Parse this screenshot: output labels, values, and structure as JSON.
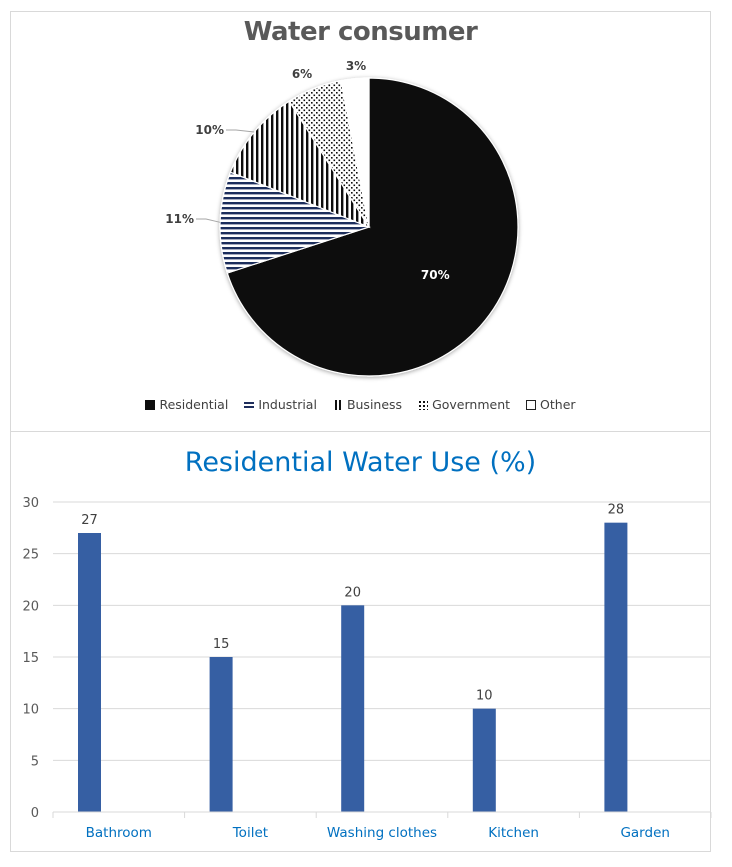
{
  "pie_chart": {
    "title": "Water consumer",
    "slices": [
      {
        "label": "Residential",
        "value": 70,
        "display": "70%",
        "pattern": "solid-black"
      },
      {
        "label": "Industrial",
        "value": 11,
        "display": "11%",
        "pattern": "horizontal-navy-stripes"
      },
      {
        "label": "Business",
        "value": 10,
        "display": "10%",
        "pattern": "vertical-black-stripes"
      },
      {
        "label": "Government",
        "value": 6,
        "display": "6%",
        "pattern": "dots"
      },
      {
        "label": "Other",
        "value": 3,
        "display": "3%",
        "pattern": "white"
      }
    ],
    "legend": [
      "Residential",
      "Industrial",
      "Business",
      "Government",
      "Other"
    ]
  },
  "bar_chart": {
    "title": "Residential Water Use (%)",
    "y_ticks": [
      "0",
      "5",
      "10",
      "15",
      "20",
      "25",
      "30"
    ],
    "categories": [
      "Bathroom",
      "Toilet",
      "Washing clothes",
      "Kitchen",
      "Garden"
    ],
    "values": [
      27,
      15,
      20,
      10,
      28
    ],
    "value_labels": [
      "27",
      "15",
      "20",
      "10",
      "28"
    ],
    "bar_color": "#365fa3",
    "title_color": "#0070c0"
  },
  "chart_data": [
    {
      "type": "pie",
      "title": "Water consumer",
      "categories": [
        "Residential",
        "Industrial",
        "Business",
        "Government",
        "Other"
      ],
      "values": [
        70,
        11,
        10,
        6,
        3
      ],
      "unit": "%",
      "legend_position": "bottom"
    },
    {
      "type": "bar",
      "title": "Residential Water Use (%)",
      "categories": [
        "Bathroom",
        "Toilet",
        "Washing clothes",
        "Kitchen",
        "Garden"
      ],
      "values": [
        27,
        15,
        20,
        10,
        28
      ],
      "xlabel": "",
      "ylabel": "",
      "ylim": [
        0,
        30
      ],
      "y_tick_step": 5,
      "grid": true,
      "data_labels": true
    }
  ]
}
